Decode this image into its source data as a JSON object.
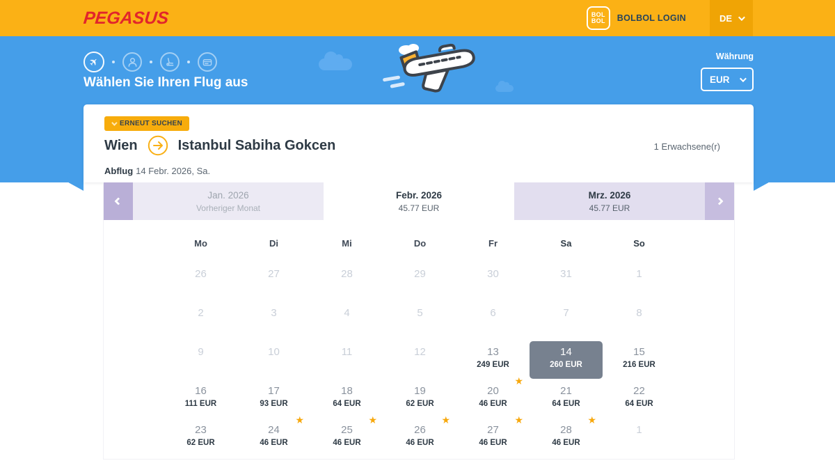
{
  "header": {
    "logo_text": "PEGASUS",
    "bolbol_line1": "BOL",
    "bolbol_line2": "BOL",
    "bolbol_login": "BOLBOL LOGIN",
    "language": "DE"
  },
  "hero": {
    "title": "Wählen Sie Ihren Flug aus",
    "currency_label": "Währung",
    "currency_value": "EUR",
    "steps": [
      "flight",
      "passenger",
      "extras",
      "payment"
    ]
  },
  "summary": {
    "research": "ERNEUT SUCHEN",
    "origin": "Wien",
    "destination": "Istanbul Sabiha Gokcen",
    "passengers": "1 Erwachsene(r)",
    "departure_label": "Abflug",
    "departure_value": "14 Febr. 2026, Sa."
  },
  "calendar": {
    "months": [
      {
        "title": "Jan. 2026",
        "subtitle": "Vorheriger Monat",
        "state": "previous"
      },
      {
        "title": "Febr. 2026",
        "subtitle": "45.77 EUR",
        "state": "selected"
      },
      {
        "title": "Mrz. 2026",
        "subtitle": "45.77 EUR",
        "state": "next"
      }
    ],
    "day_headers": [
      "Mo",
      "Di",
      "Mi",
      "Do",
      "Fr",
      "Sa",
      "So"
    ],
    "weeks": [
      [
        {
          "day": "26",
          "muted": true
        },
        {
          "day": "27",
          "muted": true
        },
        {
          "day": "28",
          "muted": true
        },
        {
          "day": "29",
          "muted": true
        },
        {
          "day": "30",
          "muted": true
        },
        {
          "day": "31",
          "muted": true
        },
        {
          "day": "1",
          "muted": true
        }
      ],
      [
        {
          "day": "2",
          "muted": true
        },
        {
          "day": "3",
          "muted": true
        },
        {
          "day": "4",
          "muted": true
        },
        {
          "day": "5",
          "muted": true
        },
        {
          "day": "6",
          "muted": true
        },
        {
          "day": "7",
          "muted": true
        },
        {
          "day": "8",
          "muted": true
        }
      ],
      [
        {
          "day": "9",
          "muted": true
        },
        {
          "day": "10",
          "muted": true
        },
        {
          "day": "11",
          "muted": true
        },
        {
          "day": "12",
          "muted": true
        },
        {
          "day": "13",
          "price": "249 EUR"
        },
        {
          "day": "14",
          "price": "260 EUR",
          "selected": true
        },
        {
          "day": "15",
          "price": "216 EUR"
        }
      ],
      [
        {
          "day": "16",
          "price": "111 EUR"
        },
        {
          "day": "17",
          "price": "93 EUR"
        },
        {
          "day": "18",
          "price": "64 EUR"
        },
        {
          "day": "19",
          "price": "62 EUR"
        },
        {
          "day": "20",
          "price": "46 EUR",
          "star": true
        },
        {
          "day": "21",
          "price": "64 EUR"
        },
        {
          "day": "22",
          "price": "64 EUR"
        }
      ],
      [
        {
          "day": "23",
          "price": "62 EUR"
        },
        {
          "day": "24",
          "price": "46 EUR",
          "star": true
        },
        {
          "day": "25",
          "price": "46 EUR",
          "star": true
        },
        {
          "day": "26",
          "price": "46 EUR",
          "star": true
        },
        {
          "day": "27",
          "price": "46 EUR",
          "star": true
        },
        {
          "day": "28",
          "price": "46 EUR",
          "star": true
        },
        {
          "day": "1",
          "muted": true
        }
      ]
    ]
  },
  "colors": {
    "amber": "#FBB115",
    "amberDark": "#F0A405",
    "blue": "#459EE9",
    "cloud": "#5FACF0",
    "navy": "#2E3A45",
    "grayText": "#5A6570",
    "red": "#E2252B",
    "star": "#F7A80D",
    "selected": "#77818F",
    "lavLight": "#ECEAF4",
    "lavMid": "#E2DEEF",
    "lavDark": "#B9AFD7",
    "lavArrow": "#C6BDDF",
    "mutedDay": "#C9CFD8",
    "dayNum": "#8A929D",
    "tabGray": "#9EA5AE"
  }
}
